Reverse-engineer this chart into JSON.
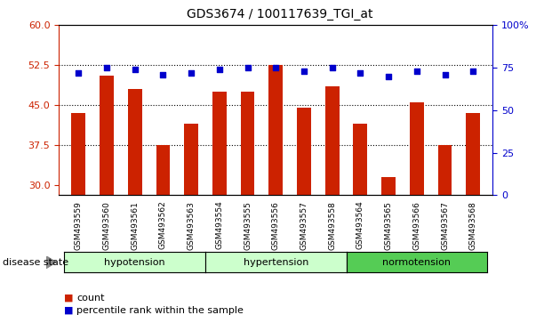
{
  "title": "GDS3674 / 100117639_TGI_at",
  "samples": [
    "GSM493559",
    "GSM493560",
    "GSM493561",
    "GSM493562",
    "GSM493563",
    "GSM493554",
    "GSM493555",
    "GSM493556",
    "GSM493557",
    "GSM493558",
    "GSM493564",
    "GSM493565",
    "GSM493566",
    "GSM493567",
    "GSM493568"
  ],
  "bar_values": [
    43.5,
    50.5,
    48.0,
    37.5,
    41.5,
    47.5,
    47.5,
    52.5,
    44.5,
    48.5,
    41.5,
    31.5,
    45.5,
    37.5,
    43.5
  ],
  "percentile_values": [
    72,
    75,
    74,
    71,
    72,
    74,
    75,
    75,
    73,
    75,
    72,
    70,
    73,
    71,
    73
  ],
  "bar_color": "#cc2200",
  "dot_color": "#0000cc",
  "ylim_left": [
    28,
    60
  ],
  "ylim_right": [
    0,
    100
  ],
  "yticks_left": [
    30,
    37.5,
    45,
    52.5,
    60
  ],
  "yticks_right": [
    0,
    25,
    50,
    75,
    100
  ],
  "groups": [
    {
      "label": "hypotension",
      "start": 0,
      "end": 5,
      "color": "#ccffcc"
    },
    {
      "label": "hypertension",
      "start": 5,
      "end": 10,
      "color": "#ccffcc"
    },
    {
      "label": "normotension",
      "start": 10,
      "end": 15,
      "color": "#55cc55"
    }
  ],
  "disease_state_label": "disease state",
  "hline_values": [
    37.5,
    45.0,
    52.5
  ],
  "bar_width": 0.5
}
